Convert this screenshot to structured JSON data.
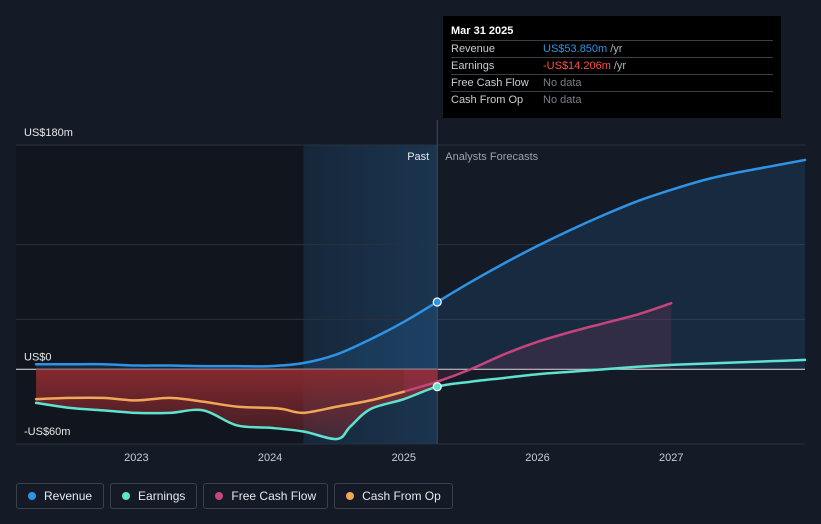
{
  "colors": {
    "revenue": "#2e93e6",
    "earnings": "#5fe3cf",
    "free_cash_flow": "#c5457c",
    "cash_from_op": "#efa758",
    "negative_fill": "#8c2a2f",
    "background": "#151b26"
  },
  "tooltip": {
    "date": "Mar 31 2025",
    "rows": [
      {
        "label": "Revenue",
        "value": "US$53.850m",
        "unit": "/yr",
        "color": "#2e93e6"
      },
      {
        "label": "Earnings",
        "value": "-US$14.206m",
        "unit": "/yr",
        "color": "#ff4d4d"
      },
      {
        "label": "Free Cash Flow",
        "value": "No data",
        "unit": "",
        "color": "#7a7f87"
      },
      {
        "label": "Cash From Op",
        "value": "No data",
        "unit": "",
        "color": "#7a7f87"
      }
    ]
  },
  "legend": [
    {
      "label": "Revenue",
      "color": "#2e93e6"
    },
    {
      "label": "Earnings",
      "color": "#5fe3cf"
    },
    {
      "label": "Free Cash Flow",
      "color": "#c5457c"
    },
    {
      "label": "Cash From Op",
      "color": "#efa758"
    }
  ],
  "chart_data": {
    "type": "line",
    "title": "",
    "xlabel": "",
    "ylabel": "",
    "units": "US$ millions",
    "xlim": [
      2022.1,
      2028.0
    ],
    "ylim": [
      -60,
      180
    ],
    "y_ticks": [
      {
        "value": 180,
        "label": "US$180m"
      },
      {
        "value": 0,
        "label": "US$0"
      },
      {
        "value": -60,
        "label": "-US$60m"
      }
    ],
    "x_ticks": [
      {
        "value": 2023,
        "label": "2023"
      },
      {
        "value": 2024,
        "label": "2024"
      },
      {
        "value": 2025,
        "label": "2025"
      },
      {
        "value": 2026,
        "label": "2026"
      },
      {
        "value": 2027,
        "label": "2027"
      }
    ],
    "past_label": "Past",
    "forecast_label": "Analysts Forecasts",
    "divider_x": 2025.25,
    "highlight_start_x": 2024.25,
    "series": [
      {
        "name": "Revenue",
        "key": "revenue",
        "fill": true,
        "x": [
          2022.25,
          2022.5,
          2022.75,
          2023.0,
          2023.25,
          2023.5,
          2023.75,
          2024.0,
          2024.25,
          2024.5,
          2024.75,
          2025.0,
          2025.25,
          2025.5,
          2025.75,
          2026.0,
          2026.25,
          2026.5,
          2026.75,
          2027.0,
          2027.25,
          2027.5,
          2027.75,
          2028.0
        ],
        "y": [
          4,
          4,
          4,
          3,
          3,
          2.5,
          2.5,
          2.5,
          5,
          12,
          24,
          38,
          54,
          70,
          85,
          99,
          112,
          124,
          135,
          144,
          152,
          158,
          163,
          168
        ]
      },
      {
        "name": "Earnings",
        "key": "earnings",
        "fill": false,
        "x": [
          2022.25,
          2022.5,
          2022.75,
          2023.0,
          2023.25,
          2023.5,
          2023.75,
          2024.0,
          2024.25,
          2024.5,
          2024.6,
          2024.75,
          2025.0,
          2025.25,
          2025.5,
          2025.75,
          2026.0,
          2026.25,
          2026.5,
          2026.75,
          2027.0,
          2027.25,
          2027.5,
          2027.75,
          2028.0
        ],
        "y": [
          -27,
          -31,
          -33,
          -35,
          -35,
          -33,
          -45,
          -47,
          -50,
          -56,
          -46,
          -32,
          -24,
          -14,
          -10,
          -7,
          -4,
          -2,
          0,
          2,
          3.5,
          4.5,
          5.5,
          6.5,
          7.5
        ]
      },
      {
        "name": "Free Cash Flow",
        "key": "free_cash_flow",
        "fill": true,
        "x": [
          2025.0,
          2025.25,
          2025.5,
          2025.75,
          2026.0,
          2026.25,
          2026.5,
          2026.75,
          2027.0
        ],
        "y": [
          -18,
          -10,
          0,
          12,
          22,
          30,
          37,
          44,
          53
        ]
      },
      {
        "name": "Cash From Op",
        "key": "cash_from_op",
        "fill": false,
        "x": [
          2022.25,
          2022.5,
          2022.75,
          2023.0,
          2023.25,
          2023.5,
          2023.75,
          2024.0,
          2024.1,
          2024.25,
          2024.5,
          2024.75,
          2025.0
        ],
        "y": [
          -24,
          -23,
          -23,
          -25,
          -23,
          -26,
          -30,
          -31,
          -32,
          -35,
          -30,
          -25,
          -18
        ]
      }
    ],
    "tooltip_markers": [
      {
        "series": "Revenue",
        "x": 2025.25,
        "y": 54
      },
      {
        "series": "Earnings",
        "x": 2025.25,
        "y": -14
      }
    ]
  }
}
